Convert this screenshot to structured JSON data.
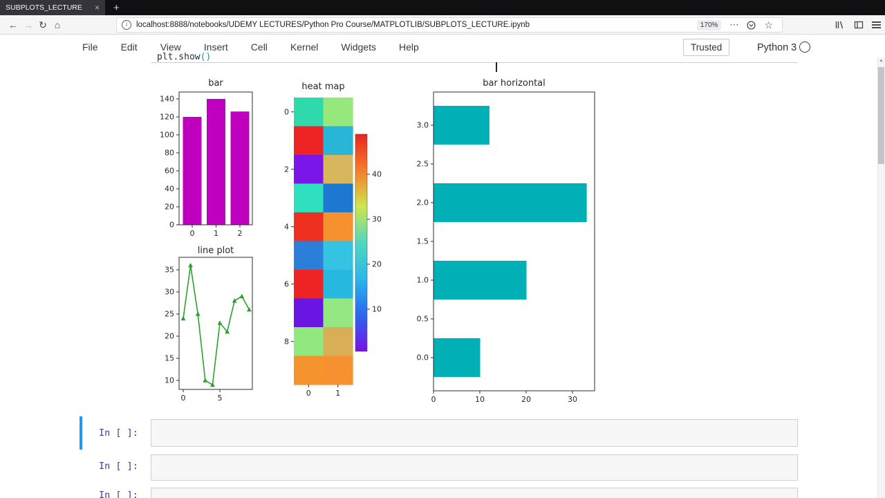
{
  "browser": {
    "tab_title": "SUBPLOTS_LECTURE",
    "close_icon": "×",
    "new_tab_icon": "+",
    "back_icon": "←",
    "forward_icon": "→",
    "reload_icon": "↻",
    "home_icon": "⌂",
    "info_icon": "i",
    "url": "localhost:8888/notebooks/UDEMY LECTURES/Python Pro Course/MATPLOTLIB/SUBPLOTS_LECTURE.ipynb",
    "zoom_level": "170%",
    "page_actions_icon": "⋯",
    "bookmark_star_icon": "☆",
    "scroll_up_icon": "▲"
  },
  "jupyter": {
    "menus": [
      "File",
      "Edit",
      "View",
      "Insert",
      "Cell",
      "Kernel",
      "Widgets",
      "Help"
    ],
    "trusted_label": "Trusted",
    "kernel_name": "Python 3",
    "code_line": {
      "main": "plt.show",
      "paren": "()"
    },
    "cells": [
      {
        "prompt": "In [ ]:"
      },
      {
        "prompt": "In [ ]:"
      },
      {
        "prompt": "In [ ]:"
      }
    ]
  },
  "chart_data": [
    {
      "type": "bar",
      "title": "bar",
      "categories": [
        0,
        1,
        2
      ],
      "values": [
        120,
        140,
        126
      ],
      "bar_color": "#bf00bf",
      "yticks": [
        0,
        20,
        40,
        60,
        80,
        100,
        120,
        140
      ],
      "xticks": [
        0,
        1,
        2
      ],
      "ylim": [
        0,
        147
      ]
    },
    {
      "type": "line",
      "title": "line plot",
      "x": [
        0,
        1,
        2,
        3,
        4,
        5,
        6,
        7,
        8,
        9
      ],
      "y": [
        24,
        36,
        25,
        10,
        9,
        23,
        21,
        28,
        29,
        26
      ],
      "line_color": "#2ca02c",
      "marker": "triangle",
      "yticks": [
        10,
        15,
        20,
        25,
        30,
        35
      ],
      "xticks": [
        0,
        5
      ],
      "ylim": [
        8,
        38
      ]
    },
    {
      "type": "heatmap",
      "title": "heat map",
      "rows": 10,
      "cols": 2,
      "yticks": [
        0,
        2,
        4,
        6,
        8
      ],
      "xticks": [
        0,
        1
      ],
      "colorbar_ticks": [
        10,
        20,
        30,
        40
      ],
      "colorbar_gradient": [
        "#e8251f",
        "#f67d2a",
        "#cfe64b",
        "#4fd8c0",
        "#2bb7e8",
        "#2a66f0",
        "#7a10e6"
      ],
      "cell_colors": [
        [
          "#2fd9ac",
          "#97e87c"
        ],
        [
          "#ee2424",
          "#29b6d6"
        ],
        [
          "#7a17e8",
          "#d8b65e"
        ],
        [
          "#2ee0be",
          "#1d78d2"
        ],
        [
          "#ee3020",
          "#f5912f"
        ],
        [
          "#2b7fd9",
          "#35c3e3"
        ],
        [
          "#ee2424",
          "#27b8e0"
        ],
        [
          "#6b15e2",
          "#93e882"
        ],
        [
          "#90e87e",
          "#d8ae57"
        ],
        [
          "#f5932c",
          "#f5912f"
        ]
      ]
    },
    {
      "type": "barh",
      "title": "bar horizontal",
      "y": [
        0,
        1,
        2,
        3
      ],
      "widths": [
        10,
        20,
        33,
        12
      ],
      "bar_color": "#00b0b7",
      "xticks": [
        0,
        10,
        20,
        30
      ],
      "yticks": [
        0,
        0.5,
        1,
        1.5,
        2,
        2.5,
        3
      ],
      "ytick_labels": [
        "0.0",
        "0.5",
        "1.0",
        "1.5",
        "2.0",
        "2.5",
        "3.0"
      ]
    }
  ]
}
